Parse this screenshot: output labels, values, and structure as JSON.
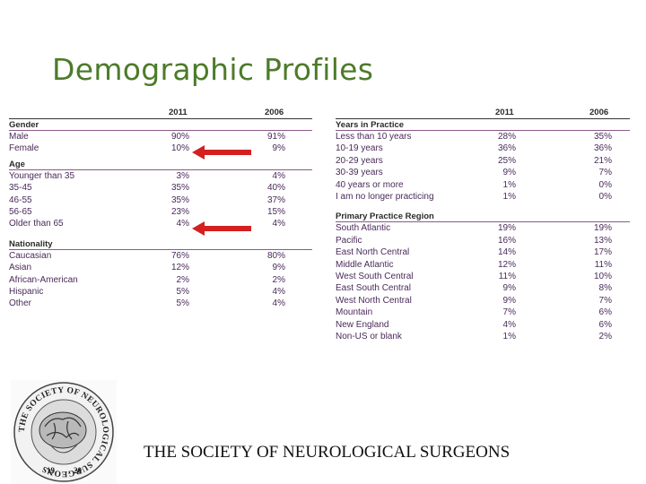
{
  "title": "Demographic Profiles",
  "footer": "THE SOCIETY OF NEUROLOGICAL SURGEONS",
  "logo": {
    "ring_top": "THE SOCIETY OF NEUROLOGICAL SURGEONS",
    "year_left": "19",
    "year_right": "20"
  },
  "left_table": {
    "col_2011": "2011",
    "col_2006": "2006",
    "sections": [
      {
        "name": "Gender",
        "rows": [
          {
            "label": "Male",
            "v2011": "90%",
            "v2006": "91%"
          },
          {
            "label": "Female",
            "v2011": "10%",
            "v2006": "9%"
          }
        ]
      },
      {
        "name": "Age",
        "rows": [
          {
            "label": "Younger than 35",
            "v2011": "3%",
            "v2006": "4%"
          },
          {
            "label": "35-45",
            "v2011": "35%",
            "v2006": "40%"
          },
          {
            "label": "46-55",
            "v2011": "35%",
            "v2006": "37%"
          },
          {
            "label": "56-65",
            "v2011": "23%",
            "v2006": "15%"
          },
          {
            "label": "Older than 65",
            "v2011": "4%",
            "v2006": "4%"
          }
        ]
      },
      {
        "name": "Nationality",
        "rows": [
          {
            "label": "Caucasian",
            "v2011": "76%",
            "v2006": "80%"
          },
          {
            "label": "Asian",
            "v2011": "12%",
            "v2006": "9%"
          },
          {
            "label": "African-American",
            "v2011": "2%",
            "v2006": "2%"
          },
          {
            "label": "Hispanic",
            "v2011": "5%",
            "v2006": "4%"
          },
          {
            "label": "Other",
            "v2011": "5%",
            "v2006": "4%"
          }
        ]
      }
    ]
  },
  "right_table": {
    "col_2011": "2011",
    "col_2006": "2006",
    "sections": [
      {
        "name": "Years in Practice",
        "rows": [
          {
            "label": "Less than 10 years",
            "v2011": "28%",
            "v2006": "35%"
          },
          {
            "label": "10-19 years",
            "v2011": "36%",
            "v2006": "36%"
          },
          {
            "label": "20-29 years",
            "v2011": "25%",
            "v2006": "21%"
          },
          {
            "label": "30-39 years",
            "v2011": "9%",
            "v2006": "7%"
          },
          {
            "label": "40 years or more",
            "v2011": "1%",
            "v2006": "0%"
          },
          {
            "label": "I am no longer practicing",
            "v2011": "1%",
            "v2006": "0%"
          }
        ]
      },
      {
        "name": "Primary Practice Region",
        "rows": [
          {
            "label": "South Atlantic",
            "v2011": "19%",
            "v2006": "19%"
          },
          {
            "label": "Pacific",
            "v2011": "16%",
            "v2006": "13%"
          },
          {
            "label": "East North Central",
            "v2011": "14%",
            "v2006": "17%"
          },
          {
            "label": "Middle Atlantic",
            "v2011": "12%",
            "v2006": "11%"
          },
          {
            "label": "West South Central",
            "v2011": "11%",
            "v2006": "10%"
          },
          {
            "label": "East South Central",
            "v2011": "9%",
            "v2006": "8%"
          },
          {
            "label": "West North Central",
            "v2011": "9%",
            "v2006": "7%"
          },
          {
            "label": "Mountain",
            "v2011": "7%",
            "v2006": "6%"
          },
          {
            "label": "New England",
            "v2011": "4%",
            "v2006": "6%"
          },
          {
            "label": "Non-US or blank",
            "v2011": "1%",
            "v2006": "2%"
          }
        ]
      }
    ]
  },
  "colors": {
    "title": "#4c7b2a",
    "arrow": "#d42020",
    "table_text": "#4a2a5a"
  }
}
